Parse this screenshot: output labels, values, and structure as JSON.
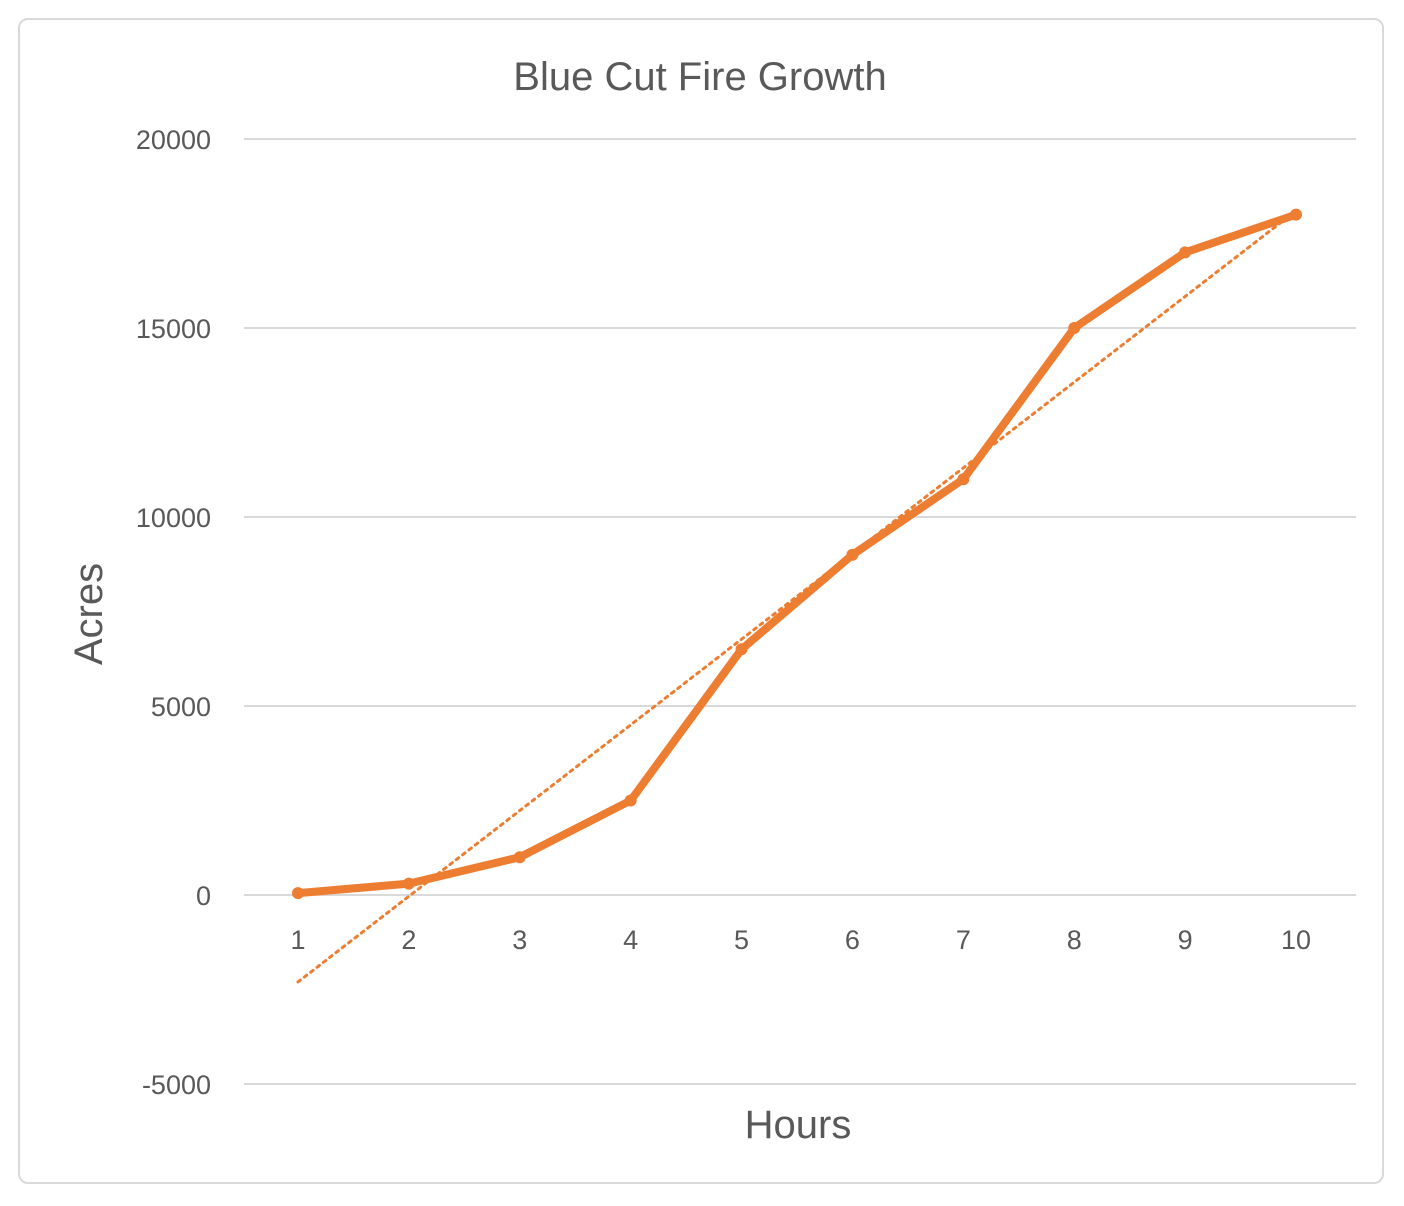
{
  "chart_data": {
    "type": "line",
    "title": "Blue Cut Fire Growth",
    "xlabel": "Hours",
    "ylabel": "Acres",
    "x": [
      1,
      2,
      3,
      4,
      5,
      6,
      7,
      8,
      9,
      10
    ],
    "series": [
      {
        "values": [
          50,
          300,
          1000,
          2500,
          6500,
          9000,
          11000,
          15000,
          17000,
          18000
        ]
      }
    ],
    "trendline": {
      "type": "linear",
      "style": "dotted",
      "start": [
        1,
        -2300
      ],
      "end": [
        10,
        18100
      ]
    },
    "ylim": [
      -5000,
      20000
    ],
    "yticks": [
      -5000,
      0,
      5000,
      10000,
      15000,
      20000
    ],
    "xticks": [
      1,
      2,
      3,
      4,
      5,
      6,
      7,
      8,
      9,
      10
    ],
    "grid": true,
    "legend": "none",
    "colors": {
      "series": "#ED7D31",
      "grid": "#d9d9d9",
      "text": "#595959"
    }
  }
}
